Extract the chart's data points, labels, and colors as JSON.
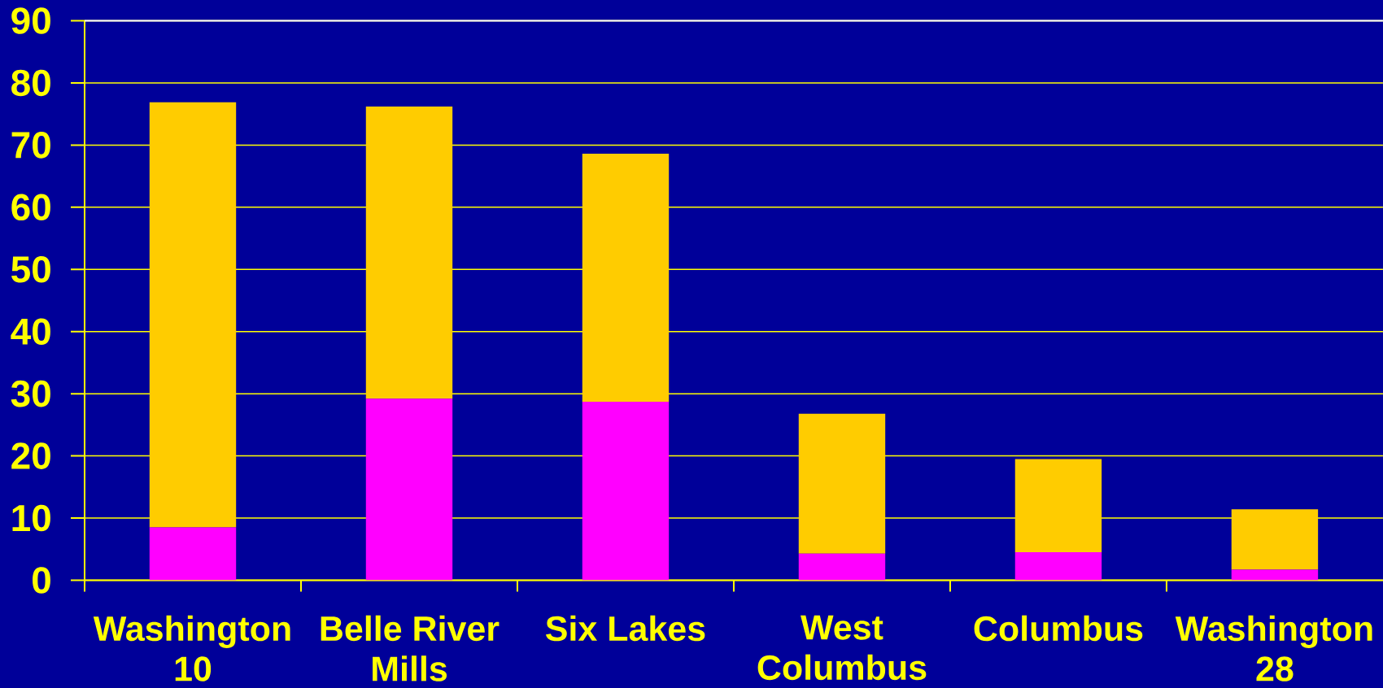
{
  "chart_data": {
    "type": "bar",
    "stacked": true,
    "categories": [
      "Washington 10",
      "Belle River Mills",
      "Six Lakes",
      "West Columbus",
      "Columbus",
      "Washington 28"
    ],
    "series": [
      {
        "color": "#ff00ff",
        "values": [
          8.5,
          29.2,
          28.7,
          4.3,
          4.5,
          1.7
        ]
      },
      {
        "color": "#ffcc00",
        "values": [
          68.4,
          47.0,
          39.9,
          22.5,
          15.0,
          9.7
        ]
      }
    ],
    "ylim": [
      0,
      90
    ],
    "yticks": [
      0,
      10,
      20,
      30,
      40,
      50,
      60,
      70,
      80,
      90
    ],
    "grid": "y"
  }
}
